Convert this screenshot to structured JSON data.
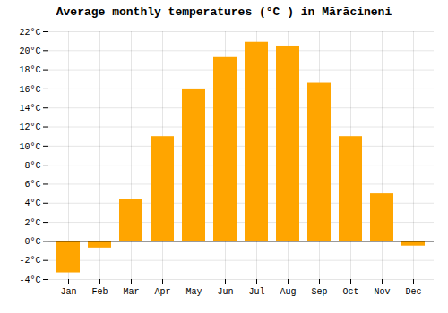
{
  "chart_data": {
    "type": "bar",
    "title": "Average monthly temperatures (°C ) in Mărăcineni",
    "categories": [
      "Jan",
      "Feb",
      "Mar",
      "Apr",
      "May",
      "Jun",
      "Jul",
      "Aug",
      "Sep",
      "Oct",
      "Nov",
      "Dec"
    ],
    "values": [
      -3.3,
      -0.7,
      4.4,
      11.0,
      16.0,
      19.3,
      20.9,
      20.5,
      16.6,
      11.0,
      5.0,
      -0.5
    ],
    "color": "#FFA500",
    "ylim": [
      -4,
      22
    ],
    "yticks": [
      {
        "value": -4,
        "label": "-4°C"
      },
      {
        "value": -2,
        "label": "-2°C"
      },
      {
        "value": 0,
        "label": "0°C"
      },
      {
        "value": 2,
        "label": "2°C"
      },
      {
        "value": 4,
        "label": "4°C"
      },
      {
        "value": 6,
        "label": "6°C"
      },
      {
        "value": 8,
        "label": "8°C"
      },
      {
        "value": 10,
        "label": "10°C"
      },
      {
        "value": 12,
        "label": "12°C"
      },
      {
        "value": 14,
        "label": "14°C"
      },
      {
        "value": 16,
        "label": "16°C"
      },
      {
        "value": 18,
        "label": "18°C"
      },
      {
        "value": 20,
        "label": "20°C"
      },
      {
        "value": 22,
        "label": "22°C"
      }
    ],
    "grid": true
  }
}
